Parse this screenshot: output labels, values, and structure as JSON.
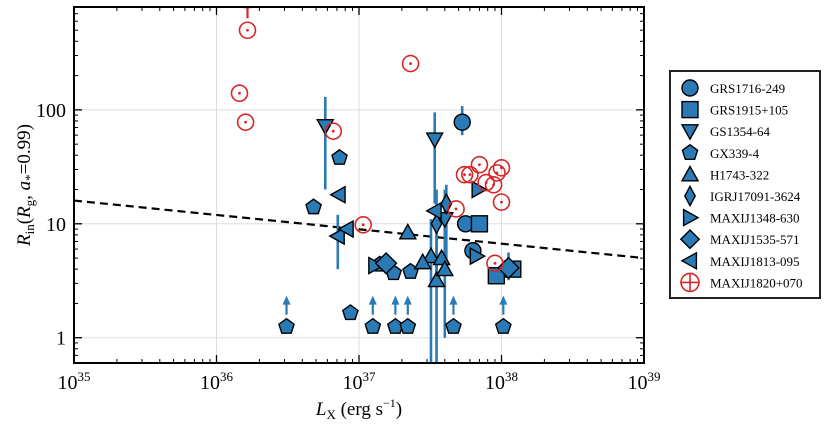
{
  "chart_data": {
    "type": "scatter",
    "xlabel": "L_X (erg s^-1)",
    "ylabel": "R_in(R_g, a*=0.99)",
    "xscale": "log",
    "yscale": "log",
    "xlim": [
      1e+35,
      1e+39
    ],
    "ylim": [
      0.6,
      800
    ],
    "x_ticks": [
      {
        "value": 1e+35,
        "base": "10",
        "exp": "35"
      },
      {
        "value": 1e+36,
        "base": "10",
        "exp": "36"
      },
      {
        "value": 1e+37,
        "base": "10",
        "exp": "37"
      },
      {
        "value": 1e+38,
        "base": "10",
        "exp": "38"
      },
      {
        "value": 1e+39,
        "base": "10",
        "exp": "39"
      }
    ],
    "y_ticks": [
      {
        "value": 1,
        "label": "1"
      },
      {
        "value": 10,
        "label": "10"
      },
      {
        "value": 100,
        "label": "100"
      }
    ],
    "grid": true,
    "legend_position": "outside-right",
    "fit_line": {
      "style": "dashed",
      "color": "#000000",
      "points": [
        [
          1e+35,
          16
        ],
        [
          1e+39,
          5
        ]
      ]
    },
    "colors": {
      "filled": "#2a7ab5",
      "open": "#d62728",
      "edge": "#000000"
    },
    "series": [
      {
        "name": "GRS1716-249",
        "marker": "circle",
        "points": [
          {
            "x": 5.3e+37,
            "y": 78,
            "ylo": 60,
            "yhi": 108
          },
          {
            "x": 5.6e+37,
            "y": 10
          },
          {
            "x": 6.3e+37,
            "y": 5.8
          }
        ]
      },
      {
        "name": "GRS1915+105",
        "marker": "square",
        "points": [
          {
            "x": 7e+37,
            "y": 10
          },
          {
            "x": 9.2e+37,
            "y": 3.5
          },
          {
            "x": 1.2e+38,
            "y": 4.0
          }
        ]
      },
      {
        "name": "GS1354-64",
        "marker": "triangle-down",
        "points": [
          {
            "x": 5.8e+36,
            "y": 72,
            "ylo": 20,
            "yhi": 130
          },
          {
            "x": 3.4e+37,
            "y": 55,
            "ylo": 15,
            "yhi": 95
          },
          {
            "x": 4e+37,
            "y": 11,
            "ylo": 5,
            "yhi": 20
          }
        ]
      },
      {
        "name": "GX339-4",
        "marker": "pentagon",
        "points": [
          {
            "x": 4.8e+36,
            "y": 14
          },
          {
            "x": 7.3e+36,
            "y": 38
          },
          {
            "x": 8.7e+36,
            "y": 1.65
          },
          {
            "x": 1.4e+37,
            "y": 4.4
          },
          {
            "x": 1.75e+37,
            "y": 3.7
          },
          {
            "x": 2.3e+37,
            "y": 3.8
          },
          {
            "x": 3.1e+36,
            "y": 1.25,
            "lower_limit": true
          },
          {
            "x": 1.25e+37,
            "y": 1.25,
            "lower_limit": true
          },
          {
            "x": 1.8e+37,
            "y": 1.25,
            "lower_limit": true
          },
          {
            "x": 2.2e+37,
            "y": 1.25,
            "lower_limit": true
          },
          {
            "x": 4.6e+37,
            "y": 1.25,
            "lower_limit": true
          },
          {
            "x": 1.03e+38,
            "y": 1.25,
            "lower_limit": true
          }
        ]
      },
      {
        "name": "H1743-322",
        "marker": "triangle-up",
        "points": [
          {
            "x": 2.2e+37,
            "y": 8.4
          },
          {
            "x": 3.2e+37,
            "y": 5.2,
            "ylo": 0.6,
            "yhi": 11
          },
          {
            "x": 3.5e+37,
            "y": 3.2,
            "ylo": 0.6,
            "yhi": 8
          },
          {
            "x": 3.8e+37,
            "y": 5.0
          },
          {
            "x": 4e+37,
            "y": 4.0,
            "ylo": 1,
            "yhi": 9
          },
          {
            "x": 2.8e+37,
            "y": 4.6
          }
        ]
      },
      {
        "name": "IGRJ17091-3624",
        "marker": "diamond",
        "points": [
          {
            "x": 3.5e+37,
            "y": 10,
            "ylo": 3,
            "yhi": 20
          },
          {
            "x": 4.1e+37,
            "y": 15,
            "ylo": 4,
            "yhi": 22
          }
        ]
      },
      {
        "name": "MAXIJ1348-630",
        "marker": "triangle-right",
        "points": [
          {
            "x": 6.9e+37,
            "y": 20
          },
          {
            "x": 6.7e+37,
            "y": 5.2
          },
          {
            "x": 1.3e+37,
            "y": 4.3
          }
        ]
      },
      {
        "name": "MAXIJ1535-571",
        "marker": "diamond-large",
        "points": [
          {
            "x": 1.12e+38,
            "y": 4.1,
            "ylo": 3.2,
            "yhi": 5.6
          },
          {
            "x": 1.55e+37,
            "y": 4.5
          }
        ]
      },
      {
        "name": "MAXIJ1813-095",
        "marker": "triangle-left",
        "points": [
          {
            "x": 7.2e+36,
            "y": 18
          },
          {
            "x": 7.1e+36,
            "y": 7.8,
            "ylo": 4,
            "yhi": 12
          },
          {
            "x": 8.2e+36,
            "y": 9
          },
          {
            "x": 3.4e+37,
            "y": 13
          }
        ]
      },
      {
        "name": "MAXIJ1820+070",
        "marker": "circle-open",
        "points": [
          {
            "x": 1.65e+36,
            "y": 500,
            "lower_limit": true
          },
          {
            "x": 1.45e+36,
            "y": 140
          },
          {
            "x": 1.6e+36,
            "y": 78
          },
          {
            "x": 6.6e+36,
            "y": 65
          },
          {
            "x": 1.07e+37,
            "y": 9.8
          },
          {
            "x": 2.3e+37,
            "y": 255
          },
          {
            "x": 4.8e+37,
            "y": 13.5
          },
          {
            "x": 5.5e+37,
            "y": 27
          },
          {
            "x": 6e+37,
            "y": 27
          },
          {
            "x": 7e+37,
            "y": 33
          },
          {
            "x": 7.8e+37,
            "y": 23
          },
          {
            "x": 8.8e+37,
            "y": 22
          },
          {
            "x": 9.3e+37,
            "y": 28
          },
          {
            "x": 1e+38,
            "y": 31
          },
          {
            "x": 1e+38,
            "y": 15.5
          },
          {
            "x": 9e+37,
            "y": 4.5
          }
        ]
      }
    ]
  }
}
